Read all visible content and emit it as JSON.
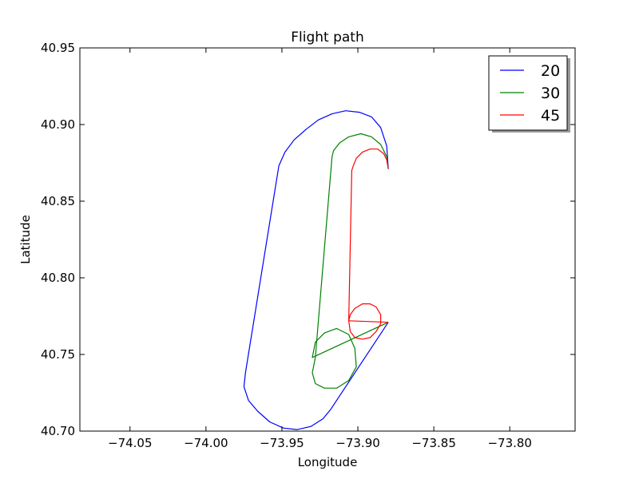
{
  "chart_data": {
    "type": "line",
    "title": "Flight path",
    "xlabel": "Longitude",
    "ylabel": "Latitude",
    "xlim": [
      -74.083,
      -73.757
    ],
    "ylim": [
      40.7,
      40.95
    ],
    "xticks": [
      -74.05,
      -74.0,
      -73.95,
      -73.9,
      -73.85,
      -73.8
    ],
    "xtick_labels": [
      "−74.05",
      "−74.00",
      "−73.95",
      "−73.90",
      "−73.85",
      "−73.80"
    ],
    "yticks": [
      40.7,
      40.75,
      40.8,
      40.85,
      40.9,
      40.95
    ],
    "ytick_labels": [
      "40.70",
      "40.75",
      "40.80",
      "40.85",
      "40.90",
      "40.95"
    ],
    "grid": false,
    "legend_position": "top-right",
    "series": [
      {
        "name": "20",
        "color": "#0000ff",
        "x": [
          -73.88,
          -73.881,
          -73.885,
          -73.891,
          -73.899,
          -73.908,
          -73.917,
          -73.926,
          -73.934,
          -73.942,
          -73.948,
          -73.952,
          -73.974,
          -73.975,
          -73.972,
          -73.966,
          -73.958,
          -73.949,
          -73.94,
          -73.931,
          -73.923,
          -73.918,
          -73.88
        ],
        "y": [
          40.871,
          40.886,
          40.898,
          40.905,
          40.908,
          40.909,
          40.907,
          40.903,
          40.897,
          40.89,
          40.882,
          40.873,
          40.738,
          40.729,
          40.72,
          40.713,
          40.706,
          40.702,
          40.701,
          40.703,
          40.708,
          40.714,
          40.771
        ]
      },
      {
        "name": "30",
        "color": "#008000",
        "x": [
          -73.88,
          -73.881,
          -73.885,
          -73.891,
          -73.898,
          -73.906,
          -73.912,
          -73.916,
          -73.917,
          -73.928,
          -73.93,
          -73.928,
          -73.922,
          -73.914,
          -73.906,
          -73.901,
          -73.902,
          -73.906,
          -73.914,
          -73.922,
          -73.928,
          -73.93,
          -73.88
        ],
        "y": [
          40.871,
          40.879,
          40.887,
          40.892,
          40.894,
          40.892,
          40.888,
          40.883,
          40.879,
          40.748,
          40.738,
          40.731,
          40.728,
          40.728,
          40.733,
          40.742,
          40.754,
          40.763,
          40.767,
          40.764,
          40.758,
          40.748,
          40.771
        ]
      },
      {
        "name": "45",
        "color": "#ff0000",
        "x": [
          -73.88,
          -73.881,
          -73.883,
          -73.887,
          -73.892,
          -73.897,
          -73.901,
          -73.903,
          -73.904,
          -73.906,
          -73.905,
          -73.902,
          -73.897,
          -73.892,
          -73.888,
          -73.885,
          -73.885,
          -73.888,
          -73.892,
          -73.897,
          -73.902,
          -73.905,
          -73.906,
          -73.88
        ],
        "y": [
          40.871,
          40.877,
          40.881,
          40.884,
          40.884,
          40.882,
          40.878,
          40.873,
          40.87,
          40.772,
          40.765,
          40.761,
          40.76,
          40.761,
          40.765,
          40.77,
          40.776,
          40.781,
          40.783,
          40.783,
          40.78,
          40.776,
          40.772,
          40.771
        ]
      }
    ]
  }
}
